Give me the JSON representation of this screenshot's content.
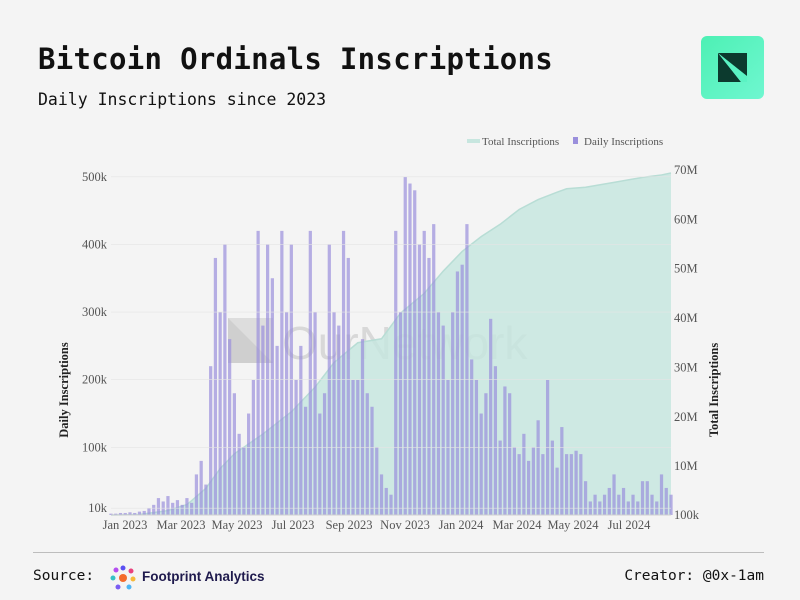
{
  "header": {
    "title": "Bitcoin Ordinals Inscriptions",
    "subtitle": "Daily Inscriptions since 2023"
  },
  "brand": {
    "accent": "#4df0b4",
    "icon": "ournetwork-logo-icon"
  },
  "footer": {
    "source_label": "Source:",
    "source_name": "Footprint Analytics",
    "creator": "Creator: @0x-1am"
  },
  "watermark": {
    "text": "OurNetwork"
  },
  "colors": {
    "bars": "#9a8fdc",
    "area": "#c7e6df",
    "area_line": "#b8ddd5"
  },
  "chart_data": {
    "type": "bar+area",
    "legend": [
      "Total Inscriptions",
      "Daily Inscriptions"
    ],
    "x_ticks": [
      "Jan 2023",
      "Mar 2023",
      "May 2023",
      "Jul 2023",
      "Sep 2023",
      "Nov 2023",
      "Jan 2024",
      "Mar 2024",
      "May 2024",
      "Jul 2024"
    ],
    "y_left": {
      "label": "Daily Inscriptions",
      "ticks": [
        "10k",
        "100k",
        "200k",
        "300k",
        "400k",
        "500k"
      ],
      "tick_values": [
        10000,
        100000,
        200000,
        300000,
        400000,
        500000
      ],
      "range": [
        0,
        510000
      ]
    },
    "y_right": {
      "label": "Total Inscriptions",
      "ticks": [
        "100k",
        "10M",
        "20M",
        "30M",
        "40M",
        "50M",
        "60M",
        "70M"
      ],
      "tick_values": [
        100000,
        10000000,
        20000000,
        30000000,
        40000000,
        50000000,
        60000000,
        70000000
      ],
      "range": [
        100000,
        70000000
      ]
    },
    "x_range_days": [
      0,
      590
    ],
    "total_series": {
      "days": [
        0,
        30,
        60,
        80,
        100,
        115,
        130,
        160,
        190,
        215,
        235,
        260,
        285,
        305,
        330,
        350,
        370,
        390,
        410,
        420,
        430,
        450,
        470,
        480,
        500,
        530,
        560,
        580,
        590
      ],
      "values": [
        100000,
        200000,
        1000000,
        2200000,
        5500000,
        9500000,
        12500000,
        16500000,
        21000000,
        26000000,
        31000000,
        35000000,
        35800000,
        41000000,
        45000000,
        49500000,
        53500000,
        56500000,
        59000000,
        60500000,
        62000000,
        64000000,
        65500000,
        66200000,
        66500000,
        67500000,
        68500000,
        69000000,
        69400000
      ]
    },
    "daily_series": {
      "days": [
        0,
        5,
        10,
        15,
        20,
        25,
        30,
        35,
        40,
        45,
        50,
        55,
        60,
        65,
        70,
        75,
        80,
        85,
        90,
        95,
        100,
        105,
        110,
        115,
        120,
        125,
        130,
        135,
        140,
        145,
        150,
        155,
        160,
        165,
        170,
        175,
        180,
        185,
        190,
        195,
        200,
        205,
        210,
        215,
        220,
        225,
        230,
        235,
        240,
        245,
        250,
        255,
        260,
        265,
        270,
        275,
        280,
        285,
        290,
        295,
        300,
        305,
        310,
        315,
        320,
        325,
        330,
        335,
        340,
        345,
        350,
        355,
        360,
        365,
        370,
        375,
        380,
        385,
        390,
        395,
        400,
        405,
        410,
        415,
        420,
        425,
        430,
        435,
        440,
        445,
        450,
        455,
        460,
        465,
        470,
        475,
        480,
        485,
        490,
        495,
        500,
        505,
        510,
        515,
        520,
        525,
        530,
        535,
        540,
        545,
        550,
        555,
        560,
        565,
        570,
        575,
        580,
        585,
        590
      ],
      "values": [
        2000,
        2000,
        3000,
        3000,
        4000,
        3000,
        5000,
        6000,
        10000,
        15000,
        25000,
        20000,
        28000,
        18000,
        22000,
        15000,
        25000,
        18000,
        60000,
        80000,
        45000,
        220000,
        380000,
        300000,
        400000,
        260000,
        180000,
        120000,
        100000,
        150000,
        200000,
        420000,
        280000,
        400000,
        350000,
        250000,
        420000,
        300000,
        400000,
        200000,
        250000,
        160000,
        420000,
        300000,
        150000,
        180000,
        400000,
        300000,
        280000,
        420000,
        380000,
        200000,
        200000,
        260000,
        180000,
        160000,
        100000,
        60000,
        40000,
        30000,
        420000,
        300000,
        500000,
        490000,
        480000,
        400000,
        420000,
        380000,
        430000,
        300000,
        280000,
        200000,
        300000,
        360000,
        370000,
        430000,
        230000,
        200000,
        150000,
        180000,
        290000,
        220000,
        110000,
        190000,
        180000,
        100000,
        90000,
        120000,
        80000,
        100000,
        140000,
        90000,
        200000,
        110000,
        70000,
        130000,
        90000,
        90000,
        95000,
        90000,
        50000,
        20000,
        30000,
        20000,
        30000,
        40000,
        60000,
        30000,
        40000,
        20000,
        30000,
        20000,
        50000,
        50000,
        30000,
        20000,
        60000,
        40000,
        30000
      ]
    }
  }
}
